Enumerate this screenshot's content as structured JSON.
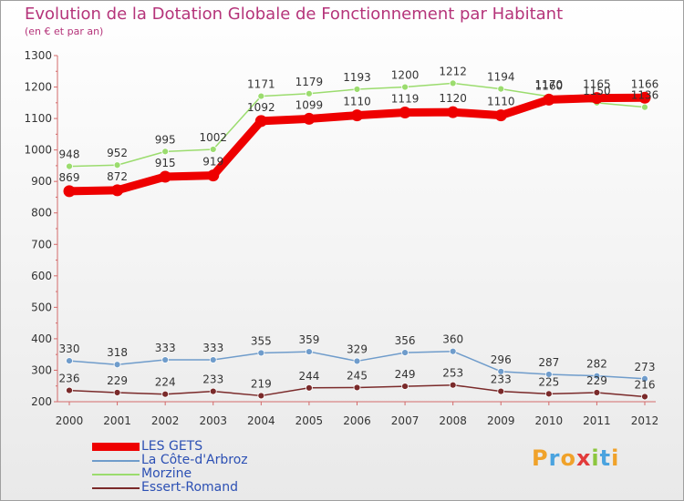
{
  "chart_data": {
    "type": "line",
    "title": "Evolution de la Dotation Globale de Fonctionnement par Habitant",
    "subtitle": "(en € et par an)",
    "xlabel": "",
    "ylabel": "",
    "ylim": [
      200,
      1300
    ],
    "yticks": [
      200,
      300,
      400,
      500,
      600,
      700,
      800,
      900,
      1000,
      1100,
      1200,
      1300
    ],
    "categories": [
      "2000",
      "2001",
      "2002",
      "2003",
      "2004",
      "2005",
      "2006",
      "2007",
      "2008",
      "2009",
      "2010",
      "2011",
      "2012"
    ],
    "grid": false,
    "legend_position": "bottom-left",
    "series": [
      {
        "name": "LES GETS",
        "color": "#ee0000",
        "values": [
          869,
          872,
          915,
          919,
          1092,
          1099,
          1110,
          1119,
          1120,
          1110,
          1160,
          1165,
          1166
        ]
      },
      {
        "name": "La Côte-d'Arbroz",
        "color": "#6f9ccb",
        "values": [
          330,
          318,
          333,
          333,
          355,
          359,
          329,
          356,
          360,
          296,
          287,
          282,
          273
        ]
      },
      {
        "name": "Morzine",
        "color": "#9bdc6e",
        "values": [
          948,
          952,
          995,
          1002,
          1171,
          1179,
          1193,
          1200,
          1212,
          1194,
          1170,
          1150,
          1136
        ]
      },
      {
        "name": "Essert-Romand",
        "color": "#7a2a2a",
        "values": [
          236,
          229,
          224,
          233,
          219,
          244,
          245,
          249,
          253,
          233,
          225,
          229,
          216
        ]
      }
    ]
  },
  "logo": {
    "letters": [
      "P",
      "r",
      "o",
      "x",
      "i",
      "t",
      "i"
    ],
    "colors": [
      "#f0a22a",
      "#4aa3df",
      "#f0a22a",
      "#e23b3b",
      "#8cc63e",
      "#4aa3df",
      "#f0a22a"
    ]
  }
}
